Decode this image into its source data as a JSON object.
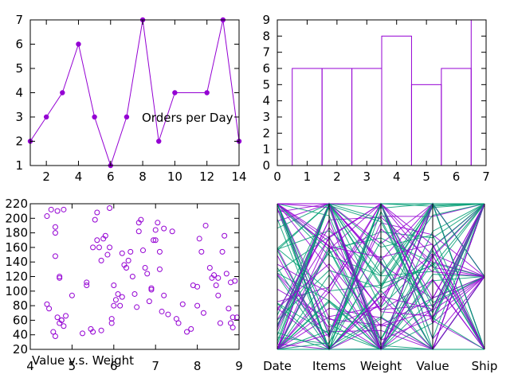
{
  "chart_data": [
    {
      "type": "line",
      "label": "Orders per Day",
      "xlim": [
        1,
        14
      ],
      "ylim": [
        1,
        7
      ],
      "xticks": [
        2,
        4,
        6,
        8,
        10,
        12,
        14
      ],
      "yticks": [
        1,
        2,
        3,
        4,
        5,
        6,
        7
      ],
      "x": [
        1,
        2,
        3,
        4,
        5,
        6,
        7,
        8,
        9,
        10,
        12,
        13,
        14
      ],
      "y": [
        2,
        3,
        4,
        6,
        3,
        1,
        3,
        7,
        2,
        4,
        4,
        7,
        2
      ],
      "color": "#9400d3"
    },
    {
      "type": "bar",
      "xlim": [
        0,
        7
      ],
      "ylim": [
        0,
        9
      ],
      "xticks": [
        0,
        1,
        2,
        3,
        4,
        5,
        6,
        7
      ],
      "yticks": [
        0,
        1,
        2,
        3,
        4,
        5,
        6,
        7,
        8,
        9
      ],
      "categories": [
        0,
        1,
        2,
        3,
        4,
        5,
        6
      ],
      "values": [
        1,
        6,
        6,
        6,
        8,
        5,
        6
      ],
      "last_bar_value": 9,
      "color": "#9400d3"
    },
    {
      "type": "scatter",
      "label": "Value v.s. Weight",
      "xlim": [
        4,
        9
      ],
      "ylim": [
        20,
        220
      ],
      "xticks": [
        4,
        5,
        6,
        7,
        8,
        9
      ],
      "yticks": [
        20,
        40,
        60,
        80,
        100,
        120,
        140,
        160,
        180,
        200,
        220
      ],
      "x": [
        4.4,
        4.5,
        4.6,
        4.6,
        4.65,
        4.7,
        4.7,
        4.75,
        4.8,
        4.8,
        4.6,
        4.4,
        4.45,
        4.55,
        4.6,
        4.65,
        4.7,
        4.75,
        4.85,
        5.0,
        5.25,
        5.35,
        5.35,
        5.45,
        5.5,
        5.55,
        5.6,
        5.6,
        5.65,
        5.7,
        5.75,
        5.8,
        5.85,
        5.9,
        5.95,
        5.95,
        6.0,
        6.0,
        6.05,
        6.1,
        6.15,
        6.2,
        6.25,
        6.3,
        6.35,
        6.4,
        6.45,
        6.5,
        6.55,
        6.6,
        6.65,
        6.7,
        6.75,
        6.8,
        6.85,
        6.9,
        6.9,
        6.95,
        7.0,
        7.05,
        7.1,
        7.1,
        7.15,
        7.2,
        7.3,
        7.4,
        7.5,
        7.55,
        7.65,
        7.75,
        7.85,
        7.9,
        8.0,
        8.05,
        8.1,
        8.15,
        8.2,
        8.3,
        8.35,
        8.4,
        8.45,
        8.5,
        8.55,
        8.6,
        8.65,
        8.7,
        8.75,
        8.8,
        8.85,
        8.9,
        8.95,
        5.5,
        5.7,
        5.9,
        6.2,
        6.6,
        7.0,
        7.2,
        8.0,
        8.5,
        8.8,
        8.85
      ],
      "y": [
        203,
        212,
        180,
        188,
        210,
        118,
        120,
        60,
        52,
        212,
        148,
        82,
        76,
        44,
        38,
        64,
        56,
        60,
        66,
        94,
        42,
        108,
        112,
        48,
        44,
        198,
        208,
        170,
        160,
        142,
        172,
        176,
        150,
        214,
        62,
        56,
        108,
        80,
        88,
        96,
        80,
        92,
        136,
        132,
        142,
        154,
        120,
        96,
        78,
        194,
        198,
        156,
        132,
        124,
        86,
        104,
        102,
        170,
        170,
        194,
        154,
        130,
        72,
        94,
        68,
        182,
        62,
        56,
        82,
        44,
        48,
        108,
        106,
        172,
        154,
        70,
        190,
        132,
        118,
        122,
        108,
        118,
        56,
        154,
        176,
        124,
        76,
        56,
        50,
        114,
        64,
        160,
        46,
        160,
        152,
        182,
        184,
        186,
        80,
        94,
        112,
        64
      ],
      "color": "#9400d3"
    },
    {
      "type": "parallel",
      "axes": [
        "Date",
        "Items",
        "Weight",
        "Value",
        "Ship"
      ],
      "colors": [
        "#9400d3",
        "#009e73"
      ]
    }
  ]
}
